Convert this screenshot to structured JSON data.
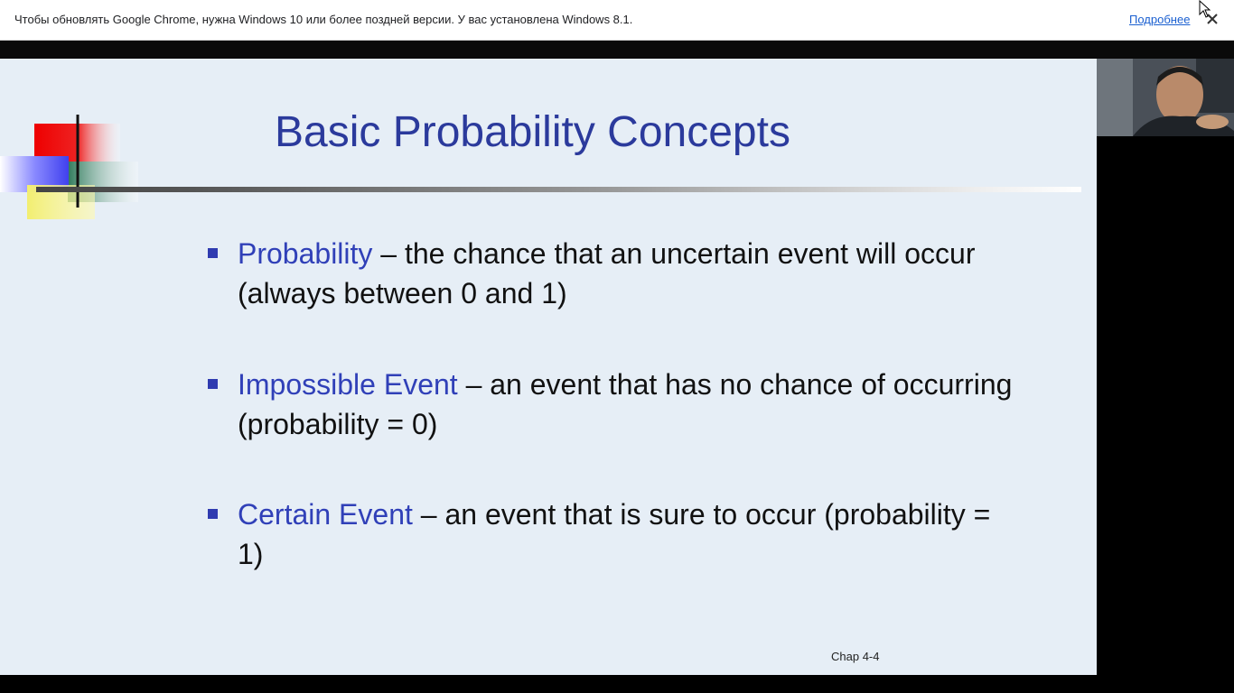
{
  "infobar": {
    "message": "Чтобы обновлять Google Chrome, нужна Windows 10 или более поздней версии. У вас установлена Windows 8.1.",
    "link_label": "Подробнее",
    "close_icon": "close-icon"
  },
  "slide": {
    "title": "Basic Probability Concepts",
    "bullets": [
      {
        "term": "Probability",
        "definition": " – the chance that an uncertain event will occur (always between 0 and 1)"
      },
      {
        "term": "Impossible Event",
        "definition": " – an event that has no chance of occurring (probability = 0)"
      },
      {
        "term": "Certain Event",
        "definition": " – an event that is sure to occur (probability = 1)"
      }
    ],
    "footer": "Chap 4-4",
    "colors": {
      "title": "#2b3a9c",
      "term": "#3040b8",
      "background": "#e6eef6"
    }
  },
  "webcam": {
    "icon": "webcam-feed"
  }
}
